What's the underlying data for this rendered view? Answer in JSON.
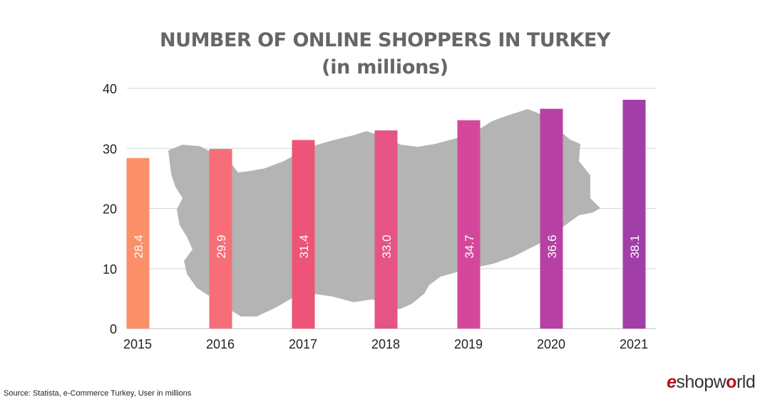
{
  "header": {
    "title": "NUMBER OF ONLINE SHOPPERS IN TURKEY",
    "subtitle": "(in millions)"
  },
  "footer": {
    "source": "Source: Statista, e-Commerce Turkey, User in millions",
    "logo_part1": "e",
    "logo_part2": "shopw",
    "logo_part3": "o",
    "logo_part4": "rld"
  },
  "chart_data": {
    "type": "bar",
    "title": "NUMBER OF ONLINE SHOPPERS IN TURKEY",
    "subtitle": "(in millions)",
    "categories": [
      "2015",
      "2016",
      "2017",
      "2018",
      "2019",
      "2020",
      "2021"
    ],
    "values": [
      28.4,
      29.9,
      31.4,
      33.0,
      34.7,
      36.6,
      38.1
    ],
    "data_labels": [
      "28.4",
      "29.9",
      "31.4",
      "33.0",
      "34.7",
      "36.6",
      "38.1"
    ],
    "bar_colors": [
      "#fb8f67",
      "#f76e78",
      "#ee5478",
      "#e55485",
      "#d4489c",
      "#b740a4",
      "#a23ea8"
    ],
    "yticks": [
      0,
      10,
      20,
      30,
      40
    ],
    "ylim": [
      0,
      40
    ],
    "grid": true,
    "background_image": "turkey-map-silhouette",
    "colors": {
      "grid": "#d6d6d6",
      "map": "#b4b4b4",
      "tick_text": "#222222",
      "label_text": "#ffffff"
    }
  }
}
